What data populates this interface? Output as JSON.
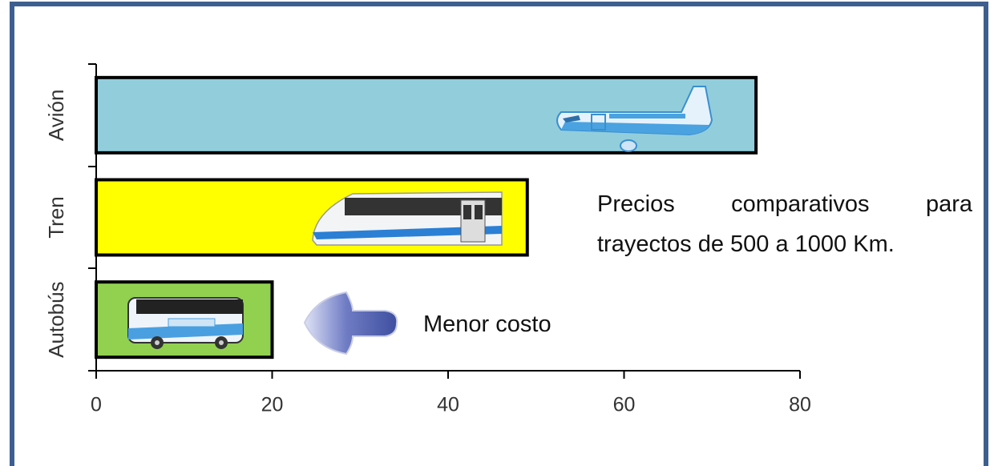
{
  "chart_data": {
    "type": "bar",
    "orientation": "horizontal",
    "categories": [
      "Autobús",
      "Tren",
      "Avión"
    ],
    "values": [
      20,
      49,
      75
    ],
    "colors": [
      "#92d050",
      "#ffff00",
      "#92cddc"
    ],
    "xlim": [
      0,
      80
    ],
    "xticks": [
      0,
      20,
      40,
      60,
      80
    ],
    "annotation_lines": [
      "Precios comparativos para",
      "trayectos de 500 a 1000 Km."
    ],
    "arrow_label": "Menor costo"
  }
}
